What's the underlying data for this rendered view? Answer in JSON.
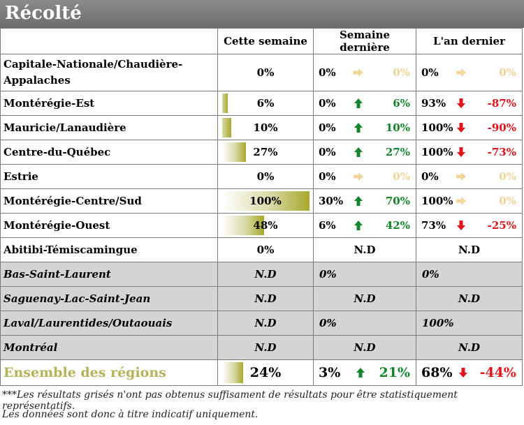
{
  "title": "Récolté",
  "headers": {
    "region": "",
    "this_week": "Cette semaine",
    "last_week": "Semaine dernière",
    "last_year": "L'an dernier"
  },
  "rows": [
    {
      "region": "Capitale-Nationale/Chaudière-Appalaches",
      "week": "0%",
      "week_level": 0,
      "lw_val": "0%",
      "lw_dir": "flat",
      "lw_diff": "0%",
      "ly_val": "0%",
      "ly_dir": "flat",
      "ly_diff": "0%"
    },
    {
      "region": "Montérégie-Est",
      "week": "6%",
      "week_level": 6,
      "lw_val": "0%",
      "lw_dir": "up",
      "lw_diff": "6%",
      "ly_val": "93%",
      "ly_dir": "down",
      "ly_diff": "-87%"
    },
    {
      "region": "Mauricie/Lanaudière",
      "week": "10%",
      "week_level": 10,
      "lw_val": "0%",
      "lw_dir": "up",
      "lw_diff": "10%",
      "ly_val": "100%",
      "ly_dir": "down",
      "ly_diff": "-90%"
    },
    {
      "region": "Centre-du-Québec",
      "week": "27%",
      "week_level": 27,
      "lw_val": "0%",
      "lw_dir": "up",
      "lw_diff": "27%",
      "ly_val": "100%",
      "ly_dir": "down",
      "ly_diff": "-73%"
    },
    {
      "region": "Estrie",
      "week": "0%",
      "week_level": 0,
      "lw_val": "0%",
      "lw_dir": "flat",
      "lw_diff": "0%",
      "ly_val": "0%",
      "ly_dir": "flat",
      "ly_diff": "0%"
    },
    {
      "region": "Montérégie-Centre/Sud",
      "week": "100%",
      "week_level": 100,
      "lw_val": "30%",
      "lw_dir": "up",
      "lw_diff": "70%",
      "ly_val": "100%",
      "ly_dir": "flat",
      "ly_diff": "0%"
    },
    {
      "region": "Montérégie-Ouest",
      "week": "48%",
      "week_level": 48,
      "lw_val": "6%",
      "lw_dir": "up",
      "lw_diff": "42%",
      "ly_val": "73%",
      "ly_dir": "down",
      "ly_diff": "-25%"
    }
  ],
  "abitibi": {
    "region": "Abitibi-Témiscamingue",
    "week": "0%",
    "lw": "N.D",
    "ly": "N.D"
  },
  "grey_rows": [
    {
      "region": "Bas-Saint-Laurent",
      "week": "N.D",
      "lw": "0%",
      "ly": "0%"
    },
    {
      "region": "Saguenay-Lac-Saint-Jean",
      "week": "N.D",
      "lw": "N.D",
      "ly": "N.D"
    },
    {
      "region": "Laval/Laurentides/Outaouais",
      "week": "N.D",
      "lw": "0%",
      "ly": "100%"
    },
    {
      "region": "Montréal",
      "week": "N.D",
      "lw": "N.D",
      "ly": "N.D"
    }
  ],
  "total": {
    "region": "Ensemble des régions",
    "week": "24%",
    "week_level": 24,
    "lw_val": "3%",
    "lw_dir": "up",
    "lw_diff": "21%",
    "ly_val": "68%",
    "ly_dir": "down",
    "ly_diff": "-44%"
  },
  "footnote_1": "***Les résultats grisés n'ont pas obtenus suffisament de résultats pour être statistiquement représentatifs.",
  "footnote_2": "Les données sont donc à titre indicatif uniquement.",
  "colors": {
    "up": "#12862a",
    "down": "#e0141a",
    "flat": "#f1d49a",
    "bar": "#a8a82a",
    "grey_row": "#d4d4d4",
    "total_label": "#b5b35a"
  },
  "icons": {
    "up": "arrow-up-icon",
    "down": "arrow-down-icon",
    "flat": "arrow-right-icon"
  }
}
